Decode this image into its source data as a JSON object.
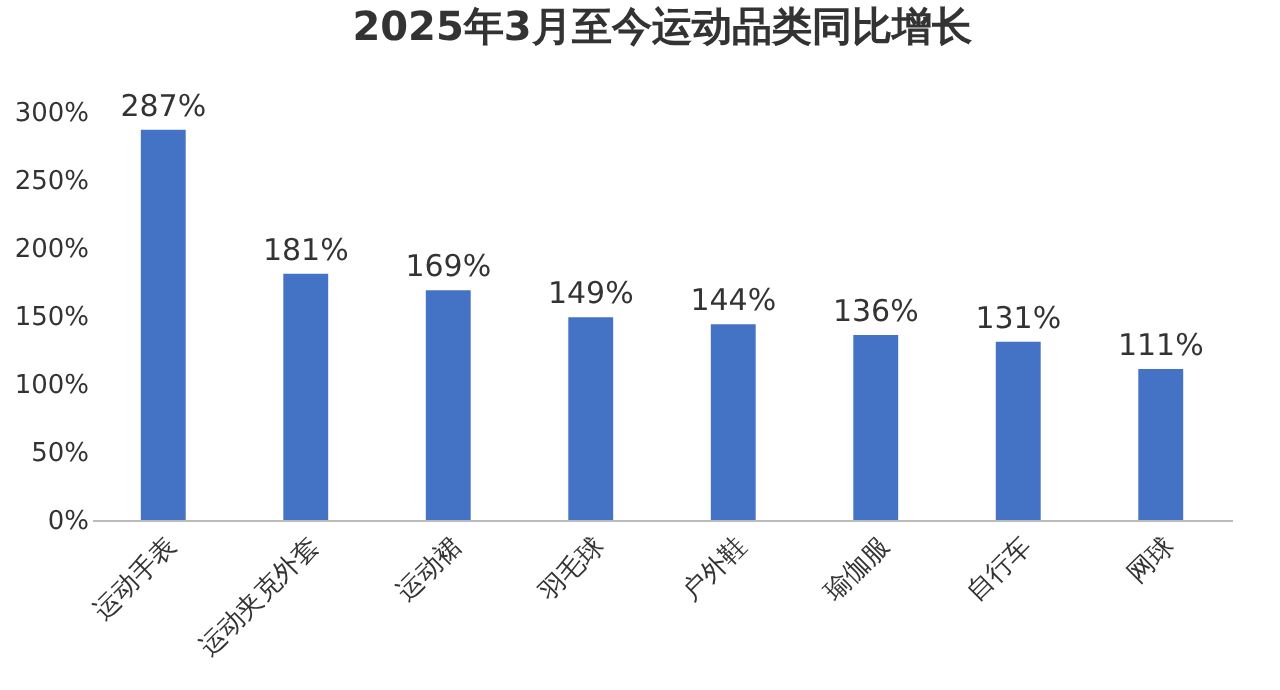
{
  "chart_data": {
    "type": "bar",
    "title": "2025年3月至今运动品类同比增长",
    "categories": [
      "运动手表",
      "运动夹克外套",
      "运动裙",
      "羽毛球",
      "户外鞋",
      "瑜伽服",
      "自行车",
      "网球"
    ],
    "values": [
      287,
      181,
      169,
      149,
      144,
      136,
      131,
      111
    ],
    "value_labels": [
      "287%",
      "181%",
      "169%",
      "149%",
      "144%",
      "136%",
      "131%",
      "111%"
    ],
    "color": "#4472c4",
    "ylim": [
      0,
      300
    ],
    "yticks": [
      {
        "value": 0,
        "label": "0%"
      },
      {
        "value": 50,
        "label": "50%"
      },
      {
        "value": 100,
        "label": "100%"
      },
      {
        "value": 150,
        "label": "150%"
      },
      {
        "value": 200,
        "label": "200%"
      },
      {
        "value": 250,
        "label": "250%"
      },
      {
        "value": 300,
        "label": "300%"
      }
    ],
    "grid": false
  }
}
